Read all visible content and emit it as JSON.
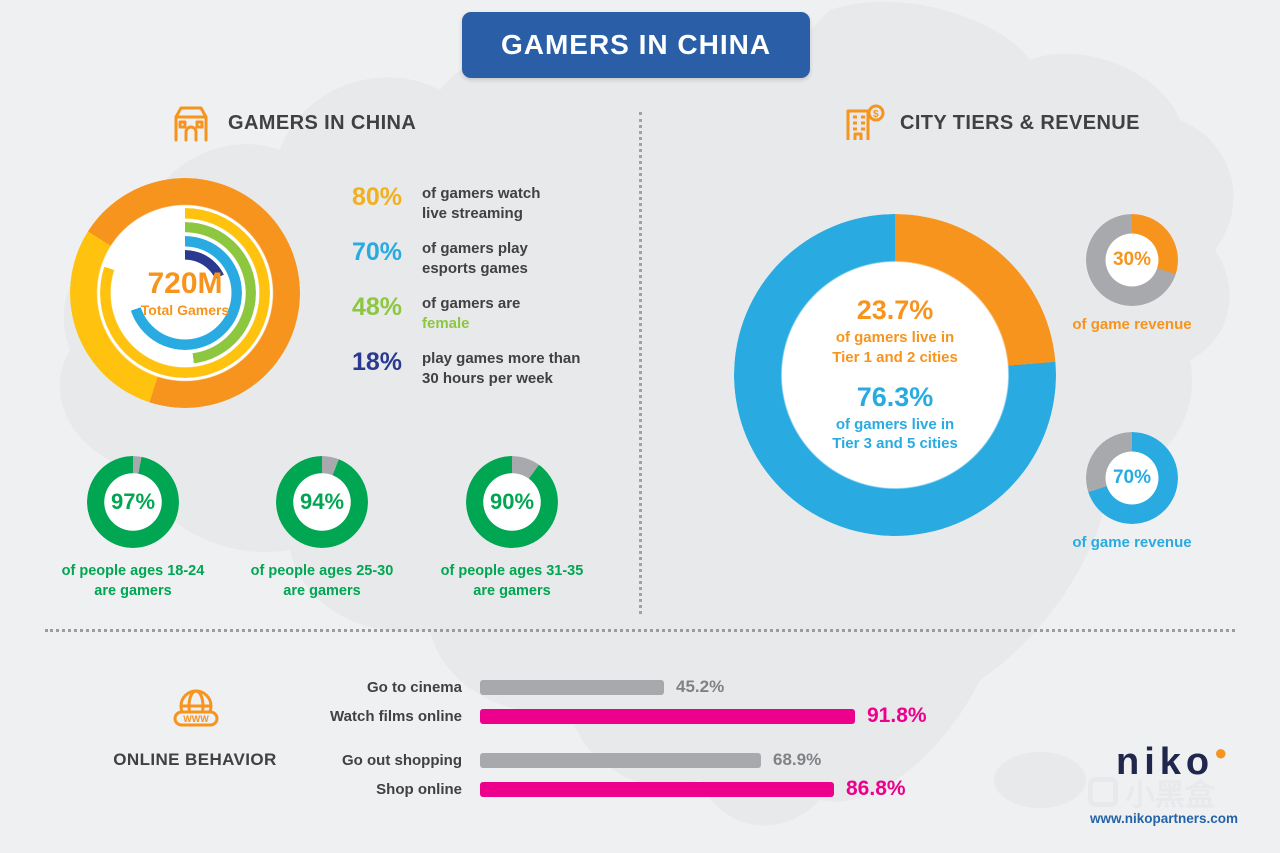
{
  "banner": {
    "title": "GAMERS IN CHINA"
  },
  "colors": {
    "orange": "#f7941e",
    "yellow_text": "#f2b01e",
    "yellow_ring": "#ffc20e",
    "light_blue": "#29abe2",
    "green_light": "#8dc63f",
    "green": "#00a651",
    "navy": "#2b3990",
    "magenta": "#ec008c",
    "gray": "#a7a9ac",
    "gray_text": "#808285",
    "dark": "#414042"
  },
  "left": {
    "header": "GAMERS IN CHINA",
    "donut": {
      "center_value": "720M",
      "center_label": "Total Gamers",
      "rings": [
        {
          "name": "total-gamers",
          "segments": [
            {
              "color": "#f7941e",
              "from": 0,
              "to": 55
            },
            {
              "color": "#ffc20e",
              "from": 55,
              "to": 84
            },
            {
              "color": "#f7941e",
              "from": 84,
              "to": 100
            }
          ]
        },
        {
          "name": "live-streaming-80",
          "segments": [
            {
              "color": "#ffc20e",
              "from": 0,
              "to": 80
            },
            {
              "color": "transparent",
              "from": 80,
              "to": 100
            }
          ]
        },
        {
          "name": "female-48",
          "segments": [
            {
              "color": "#8dc63f",
              "from": 0,
              "to": 48
            },
            {
              "color": "transparent",
              "from": 48,
              "to": 100
            }
          ]
        },
        {
          "name": "esports-70",
          "segments": [
            {
              "color": "#29abe2",
              "from": 0,
              "to": 70
            },
            {
              "color": "transparent",
              "from": 70,
              "to": 100
            }
          ]
        },
        {
          "name": "heavy-play-18",
          "segments": [
            {
              "color": "#2b3990",
              "from": 0,
              "to": 18
            },
            {
              "color": "transparent",
              "from": 18,
              "to": 100
            }
          ]
        }
      ]
    },
    "stats": [
      {
        "value": "80%",
        "color": "#f2b01e",
        "line1": "of gamers watch",
        "line2": "live streaming"
      },
      {
        "value": "70%",
        "color": "#29abe2",
        "line1": "of gamers play",
        "line2": "esports games"
      },
      {
        "value": "48%",
        "color": "#8dc63f",
        "line1": "of gamers are",
        "line2": "female",
        "line2_color": "#8dc63f"
      },
      {
        "value": "18%",
        "color": "#2b3990",
        "line1": "play games more than",
        "line2": "30 hours per week"
      }
    ],
    "ages": [
      {
        "value": "97%",
        "pct": 97,
        "line1": "of people ages 18-24",
        "line2": "are gamers",
        "segments": [
          {
            "color": "#a7a9ac",
            "from": 0,
            "to": 3
          },
          {
            "color": "#00a651",
            "from": 3,
            "to": 100
          }
        ]
      },
      {
        "value": "94%",
        "pct": 94,
        "line1": "of people ages 25-30",
        "line2": "are gamers",
        "segments": [
          {
            "color": "#a7a9ac",
            "from": 0,
            "to": 6
          },
          {
            "color": "#00a651",
            "from": 6,
            "to": 100
          }
        ]
      },
      {
        "value": "90%",
        "pct": 90,
        "line1": "of people ages 31-35",
        "line2": "are gamers",
        "segments": [
          {
            "color": "#a7a9ac",
            "from": 0,
            "to": 10
          },
          {
            "color": "#00a651",
            "from": 10,
            "to": 100
          }
        ]
      }
    ]
  },
  "right": {
    "header": "CITY TIERS & REVENUE",
    "donut": {
      "segments": [
        {
          "color": "#f7941e",
          "from": 0,
          "to": 23.7
        },
        {
          "color": "#29abe2",
          "from": 23.7,
          "to": 100
        }
      ]
    },
    "tier12": {
      "value": "23.7%",
      "color": "#f7941e",
      "line1": "of gamers live in",
      "line2": "Tier 1 and 2 cities"
    },
    "tier35": {
      "value": "76.3%",
      "color": "#29abe2",
      "line1": "of gamers live in",
      "line2": "Tier 3 and 5 cities"
    },
    "revenue": [
      {
        "value": "30%",
        "pct": 30,
        "color": "#f7941e",
        "label": "of game revenue",
        "segments": [
          {
            "color": "#f7941e",
            "from": 0,
            "to": 30
          },
          {
            "color": "#a7a9ac",
            "from": 30,
            "to": 100
          }
        ]
      },
      {
        "value": "70%",
        "pct": 70,
        "color": "#29abe2",
        "label": "of game revenue",
        "segments": [
          {
            "color": "#29abe2",
            "from": 0,
            "to": 70
          },
          {
            "color": "#a7a9ac",
            "from": 70,
            "to": 100
          }
        ]
      }
    ]
  },
  "behavior": {
    "header": "ONLINE BEHAVIOR",
    "bars": [
      {
        "label": "Go to cinema",
        "display": "45.2%",
        "value": 45.2,
        "color": "#a7a9ac",
        "value_color": "#808285"
      },
      {
        "label": "Watch films online",
        "display": "91.8%",
        "value": 91.8,
        "color": "#ec008c",
        "value_color": "#ec008c"
      },
      {
        "label": "Go out shopping",
        "display": "68.9%",
        "value": 68.9,
        "color": "#a7a9ac",
        "value_color": "#808285"
      },
      {
        "label": "Shop online",
        "display": "86.8%",
        "value": 86.8,
        "color": "#ec008c",
        "value_color": "#ec008c"
      }
    ]
  },
  "footer": {
    "logo": "niko",
    "logo_dot": "●",
    "website": "www.nikopartners.com",
    "watermark": "小黑盒"
  },
  "icons": {
    "dollar": "$",
    "www": "WWW"
  },
  "chart_data": [
    {
      "type": "pie",
      "title": "Gamers in China",
      "center_label": "720M Total Gamers",
      "series": [
        {
          "name": "of gamers watch live streaming",
          "value": 80
        },
        {
          "name": "of gamers play esports games",
          "value": 70
        },
        {
          "name": "of gamers are female",
          "value": 48
        },
        {
          "name": "play games more than 30 hours per week",
          "value": 18
        }
      ]
    },
    {
      "type": "pie",
      "title": "Share of people who are gamers by age",
      "series": [
        {
          "name": "people ages 18-24 who are gamers",
          "value": 97
        },
        {
          "name": "people ages 25-30 who are gamers",
          "value": 94
        },
        {
          "name": "people ages 31-35 who are gamers",
          "value": 90
        }
      ]
    },
    {
      "type": "pie",
      "title": "City Tiers - where gamers live",
      "labels": [
        "Tier 1 and 2 cities",
        "Tier 3 and 5 cities"
      ],
      "values": [
        23.7,
        76.3
      ]
    },
    {
      "type": "pie",
      "title": "Share of game revenue by city tier",
      "labels": [
        "Tier 1 and 2 cities (of game revenue)",
        "Tier 3 and 5 cities (of game revenue)"
      ],
      "values": [
        30,
        70
      ]
    },
    {
      "type": "bar",
      "title": "Online Behavior",
      "categories": [
        "Go to cinema",
        "Watch films online",
        "Go out shopping",
        "Shop online"
      ],
      "values": [
        45.2,
        91.8,
        68.9,
        86.8
      ],
      "xlabel": "",
      "ylabel": "",
      "xlim": [
        0,
        100
      ]
    }
  ]
}
